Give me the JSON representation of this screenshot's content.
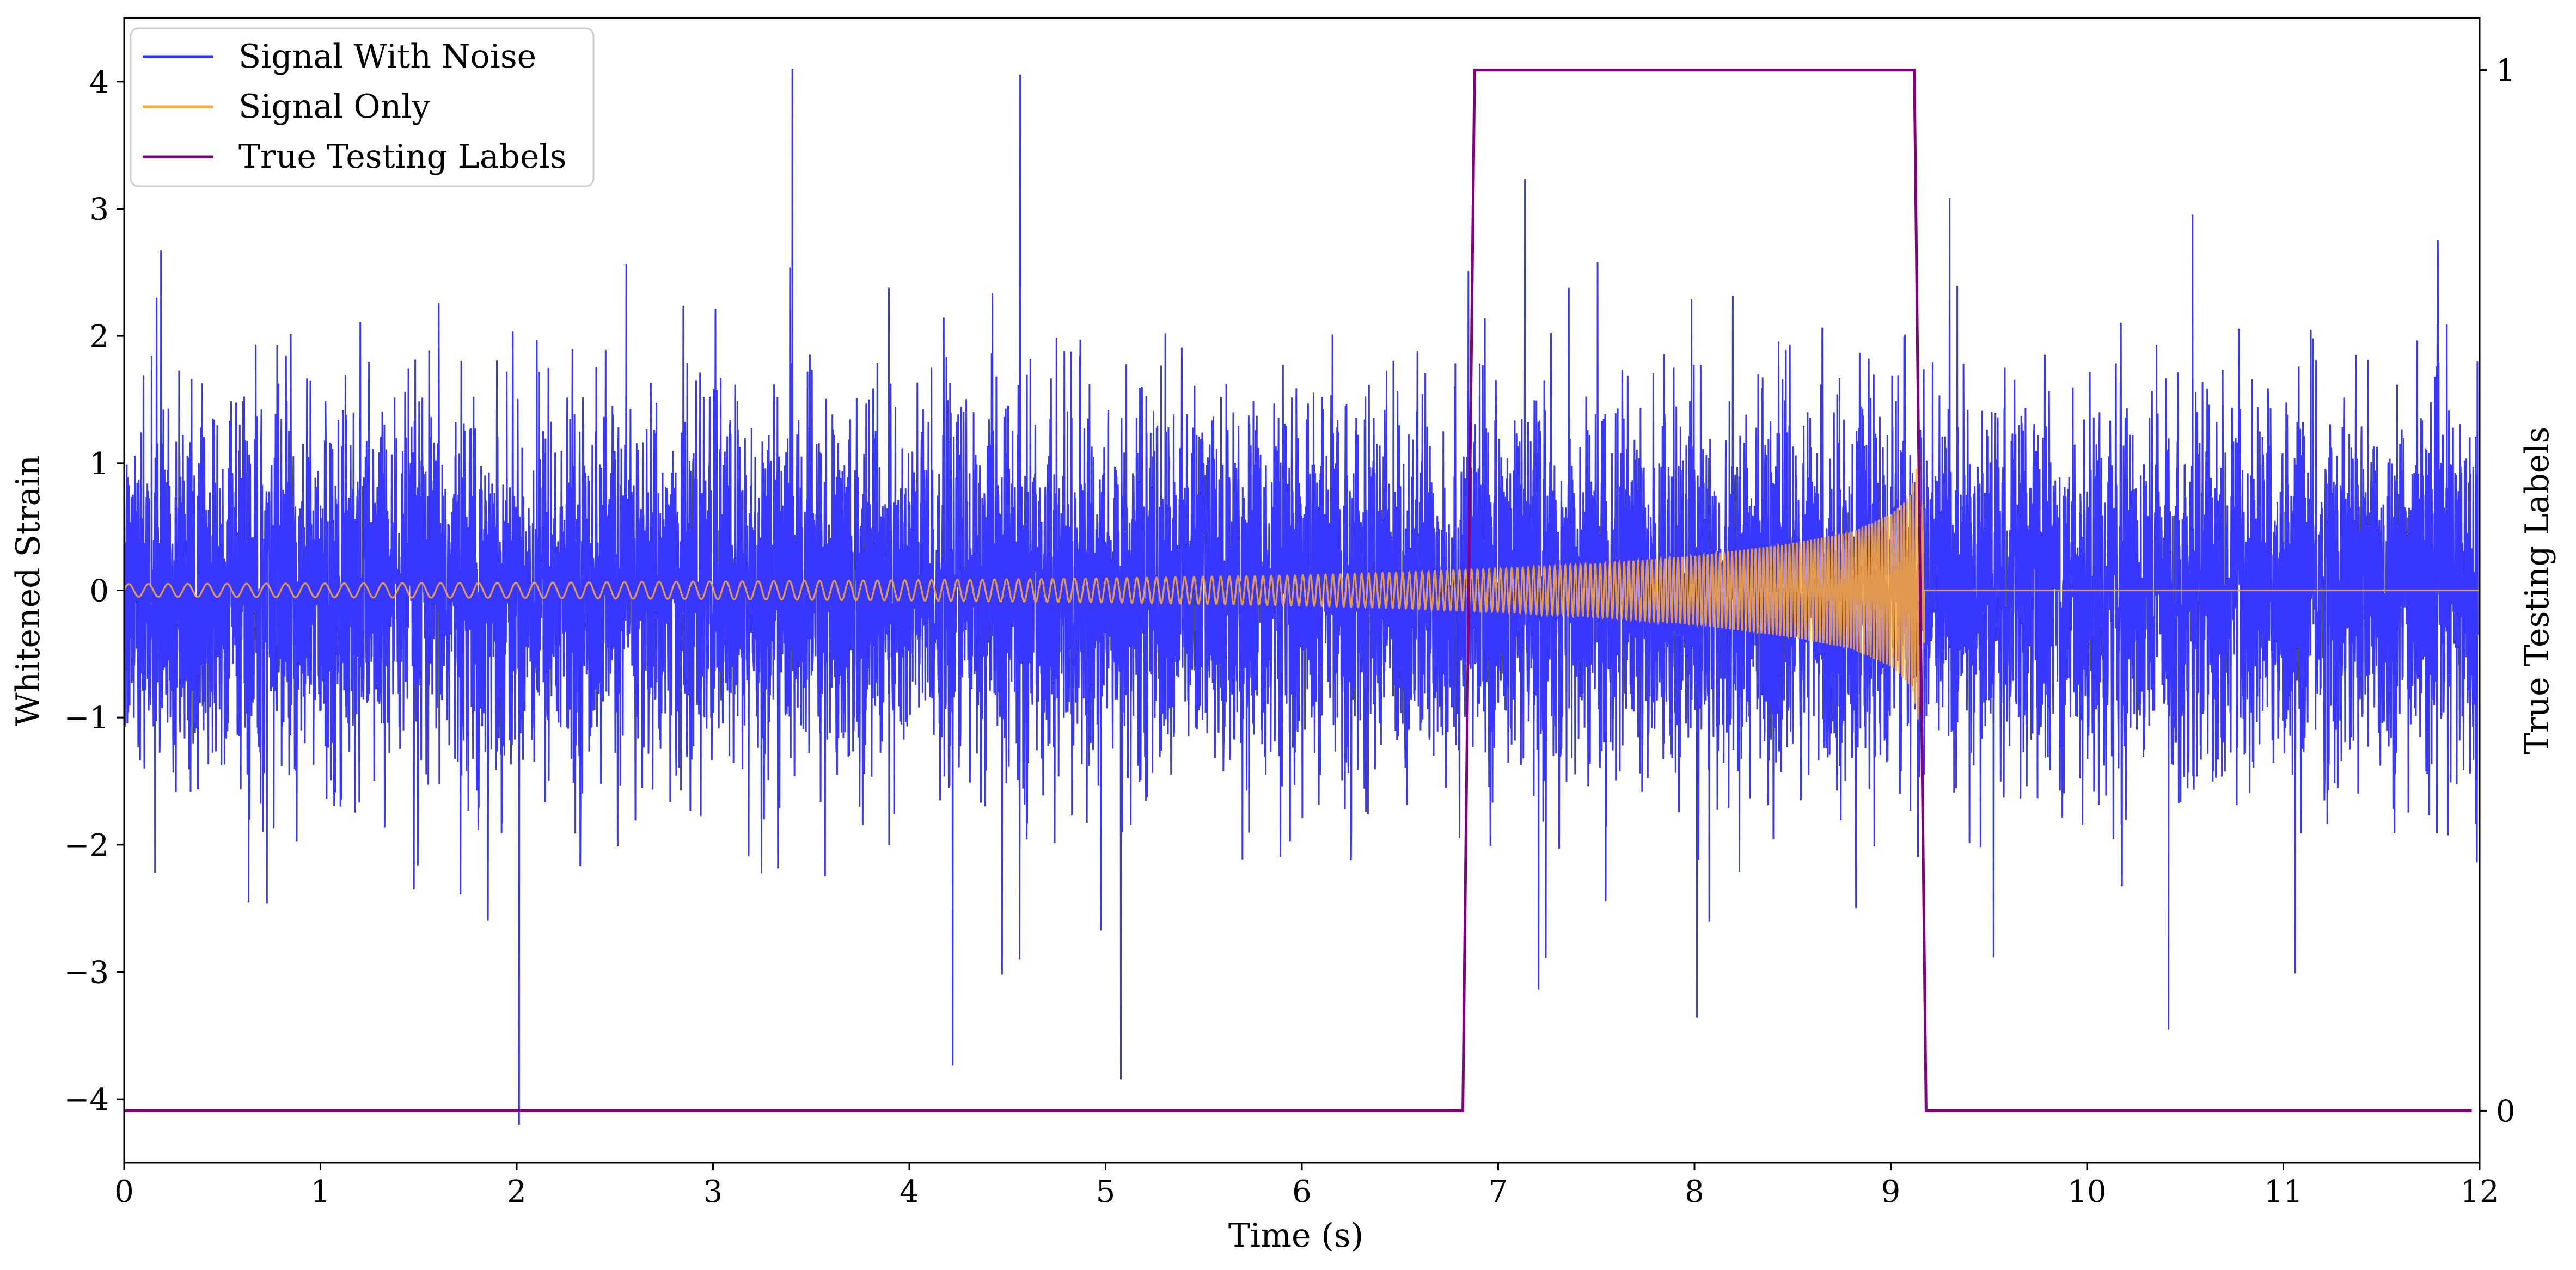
{
  "chart_data": {
    "type": "line",
    "xlabel": "Time (s)",
    "ylabel": "Whitened Strain",
    "y2label": "True Testing Labels",
    "xlim": [
      0,
      12
    ],
    "ylim": [
      -4.5,
      4.5
    ],
    "y2lim": [
      -0.05,
      1.05
    ],
    "x_ticks": [
      "0",
      "1",
      "2",
      "3",
      "4",
      "5",
      "6",
      "7",
      "8",
      "9",
      "10",
      "11",
      "12"
    ],
    "y_ticks": [
      "−4",
      "−3",
      "−2",
      "−1",
      "0",
      "1",
      "2",
      "3",
      "4"
    ],
    "y2_ticks": [
      "0",
      "1"
    ],
    "legend_position": "upper-left",
    "legend": [
      "Signal With Noise",
      "Signal Only",
      "True Testing Labels"
    ],
    "series": [
      {
        "name": "Signal With Noise",
        "axis": "left",
        "color": "#3333ff",
        "description_values": {
          "typical_band": [
            -1.2,
            1.2
          ],
          "peak_max": 4.1,
          "peak_min": -4.2,
          "x_range": [
            0,
            11.99
          ]
        }
      },
      {
        "name": "Signal Only",
        "axis": "left",
        "color": "#ffaa33",
        "envelope": {
          "x": [
            0,
            1,
            2,
            3,
            4,
            5,
            6,
            6.5,
            7,
            7.5,
            8,
            8.5,
            8.8,
            9.0,
            9.1,
            9.15,
            9.18,
            12
          ],
          "amplitude": [
            0.05,
            0.055,
            0.06,
            0.07,
            0.08,
            0.095,
            0.12,
            0.14,
            0.17,
            0.21,
            0.27,
            0.37,
            0.46,
            0.6,
            0.75,
            1.1,
            0.0,
            0.0
          ]
        },
        "merger_time": 9.17,
        "post_merger_value": 0.0
      },
      {
        "name": "True Testing Labels",
        "axis": "right",
        "color": "#800080",
        "x": [
          0,
          6.82,
          6.88,
          9.12,
          9.18,
          11.96
        ],
        "y": [
          0,
          0,
          1,
          1,
          0,
          0
        ]
      }
    ]
  }
}
